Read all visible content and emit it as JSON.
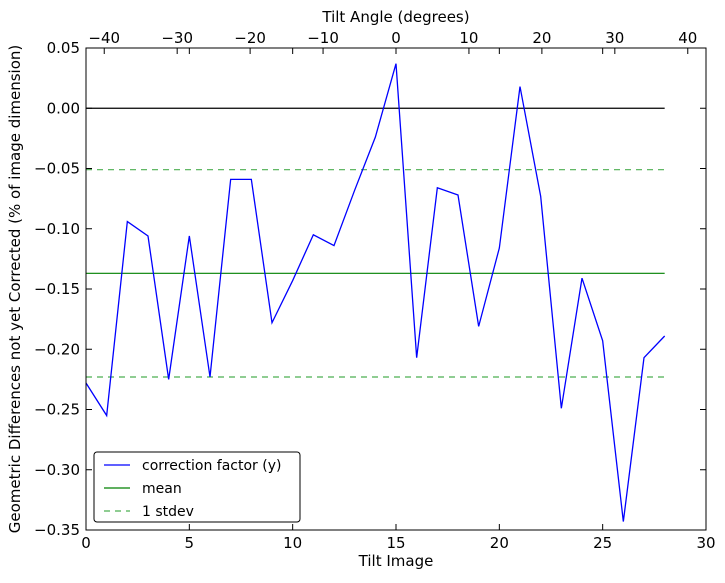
{
  "chart_data": {
    "type": "line",
    "xlabel": "Tilt Image",
    "ylabel": "Geometric Differences not yet Corrected (% of image dimension)",
    "top_xlabel": "Tilt Angle (degrees)",
    "xlim": [
      0,
      30
    ],
    "ylim": [
      -0.35,
      0.05
    ],
    "top_xlim": [
      -42.5,
      42.5
    ],
    "x_ticks": [
      0,
      5,
      10,
      15,
      20,
      25,
      30
    ],
    "x_tick_labels": [
      "0",
      "5",
      "10",
      "15",
      "20",
      "25",
      "30"
    ],
    "y_ticks": [
      0.05,
      0.0,
      -0.05,
      -0.1,
      -0.15,
      -0.2,
      -0.25,
      -0.3,
      -0.35
    ],
    "y_tick_labels": [
      "0.05",
      "0.00",
      "−0.05",
      "−0.10",
      "−0.15",
      "−0.20",
      "−0.25",
      "−0.30",
      "−0.35"
    ],
    "top_ticks": [
      -40,
      -30,
      -20,
      -10,
      0,
      10,
      20,
      30,
      40
    ],
    "top_tick_labels": [
      "−40",
      "−30",
      "−20",
      "−10",
      "0",
      "10",
      "20",
      "30",
      "40"
    ],
    "grid": false,
    "legend_position": "lower-left",
    "series": [
      {
        "name": "correction factor (y)",
        "color": "#0000ff",
        "style": "solid",
        "x": [
          0,
          1,
          2,
          3,
          4,
          5,
          6,
          7,
          8,
          9,
          10,
          11,
          12,
          13,
          14,
          15,
          16,
          17,
          18,
          19,
          20,
          21,
          22,
          23,
          24,
          25,
          26,
          27,
          28
        ],
        "values": [
          -0.228,
          -0.255,
          -0.094,
          -0.106,
          -0.225,
          -0.106,
          -0.223,
          -0.059,
          -0.059,
          -0.178,
          -0.143,
          -0.105,
          -0.114,
          -0.068,
          -0.024,
          0.037,
          -0.207,
          -0.066,
          -0.072,
          -0.181,
          -0.116,
          0.018,
          -0.073,
          -0.249,
          -0.141,
          -0.193,
          -0.343,
          -0.207,
          -0.189
        ]
      },
      {
        "name": "mean",
        "color": "#008000",
        "style": "solid",
        "x": [
          0,
          28
        ],
        "values": [
          -0.137,
          -0.137
        ]
      },
      {
        "name": "1 stdev",
        "color": "#4caf50",
        "style": "dashed",
        "x": [
          0,
          28,
          0,
          28
        ],
        "values": [
          -0.051,
          -0.051,
          -0.223,
          -0.223
        ]
      }
    ],
    "reference_line": {
      "y": 0.0,
      "x": [
        0,
        28
      ],
      "color": "#000000"
    }
  }
}
